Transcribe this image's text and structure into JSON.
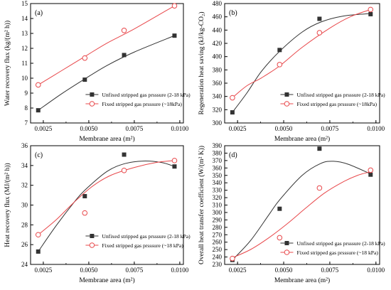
{
  "colors": {
    "black_series": "#333333",
    "red_series": "#e8474a",
    "axes": "#000000"
  },
  "chart_data": [
    {
      "type": "scatter",
      "panel": "(a)",
      "xlabel": "Membrane area (m²)",
      "ylabel": "Water recovery flux (kg/(m² h))",
      "xlim": [
        0.0018,
        0.0102
      ],
      "ylim": [
        7,
        15
      ],
      "xticks": [
        "0.0025",
        "0.0050",
        "0.0075",
        "0.0100"
      ],
      "yticks": [
        "7",
        "8",
        "9",
        "10",
        "11",
        "12",
        "13",
        "14",
        "15"
      ],
      "legend_position": "lower-right",
      "series": [
        {
          "name": "Unfixed stripped gas prsssure (2-18 kPa)",
          "marker": "square",
          "color": "#333333",
          "x": [
            0.00222,
            0.00478,
            0.00694,
            0.00971
          ],
          "y": [
            7.85,
            9.9,
            11.55,
            12.85
          ],
          "fit": [
            [
              0.00222,
              7.85
            ],
            [
              0.0035,
              8.95
            ],
            [
              0.00478,
              9.95
            ],
            [
              0.006,
              10.85
            ],
            [
              0.0075,
              11.75
            ],
            [
              0.00971,
              12.85
            ]
          ]
        },
        {
          "name": "Fixed stripped gas prsssure (~18kPa)",
          "marker": "circle",
          "color": "#e8474a",
          "x": [
            0.00222,
            0.00478,
            0.00694,
            0.00971
          ],
          "y": [
            9.55,
            11.35,
            13.2,
            14.85
          ],
          "fit": [
            [
              0.00222,
              9.55
            ],
            [
              0.0035,
              10.5
            ],
            [
              0.00478,
              11.45
            ],
            [
              0.006,
              12.35
            ],
            [
              0.0075,
              13.3
            ],
            [
              0.00971,
              14.85
            ]
          ]
        }
      ]
    },
    {
      "type": "scatter",
      "panel": "(b)",
      "xlabel": "Membrane area (m²)",
      "ylabel": "Regeneration heat saving (kJ/kg-CO₂)",
      "xlim": [
        0.0018,
        0.0102
      ],
      "ylim": [
        300,
        480
      ],
      "xticks": [
        "0.0025",
        "0.0050",
        "0.0075",
        "0.0100"
      ],
      "yticks": [
        "300",
        "320",
        "340",
        "360",
        "380",
        "400",
        "420",
        "440",
        "460",
        "480"
      ],
      "legend_position": "lower-right",
      "series": [
        {
          "name": "Unfixed stripped gas prsssure (2-18 kPa)",
          "marker": "square",
          "color": "#333333",
          "x": [
            0.00222,
            0.00478,
            0.00694,
            0.00971
          ],
          "y": [
            316,
            410,
            457,
            464
          ],
          "fit": [
            [
              0.00222,
              316
            ],
            [
              0.003,
              345
            ],
            [
              0.0038,
              378
            ],
            [
              0.00478,
              408
            ],
            [
              0.006,
              437
            ],
            [
              0.007,
              452
            ],
            [
              0.0082,
              461
            ],
            [
              0.00971,
              465
            ]
          ]
        },
        {
          "name": "Fixed stripped gas prsssure (~18kPa)",
          "marker": "circle",
          "color": "#e8474a",
          "x": [
            0.00222,
            0.00478,
            0.00694,
            0.00971
          ],
          "y": [
            338,
            388,
            436,
            471
          ],
          "fit": [
            [
              0.00222,
              338
            ],
            [
              0.003,
              356
            ],
            [
              0.0038,
              368
            ],
            [
              0.00478,
              386
            ],
            [
              0.006,
              414
            ],
            [
              0.0075,
              443
            ],
            [
              0.0086,
              460
            ],
            [
              0.00971,
              471
            ]
          ]
        }
      ]
    },
    {
      "type": "scatter",
      "panel": "(c)",
      "xlabel": "Membrane area (m²)",
      "ylabel": "Heat recovery flux (MJ/(m² h))",
      "xlim": [
        0.0018,
        0.0102
      ],
      "ylim": [
        24,
        36
      ],
      "xticks": [
        "0.0025",
        "0.0050",
        "0.0075",
        "0.0100"
      ],
      "yticks": [
        "24",
        "26",
        "28",
        "30",
        "32",
        "34",
        "36"
      ],
      "legend_position": "lower-right",
      "series": [
        {
          "name": "Unfixed stripped gas prsssure (2-18 kPa)",
          "marker": "square",
          "color": "#333333",
          "x": [
            0.00222,
            0.00478,
            0.00694,
            0.00971
          ],
          "y": [
            25.3,
            30.9,
            35.1,
            33.9
          ],
          "fit": [
            [
              0.00222,
              25.3
            ],
            [
              0.0032,
              27.9
            ],
            [
              0.0042,
              30.3
            ],
            [
              0.00478,
              31.5
            ],
            [
              0.006,
              33.4
            ],
            [
              0.007,
              34.2
            ],
            [
              0.008,
              34.45
            ],
            [
              0.009,
              34.3
            ],
            [
              0.00971,
              33.9
            ]
          ]
        },
        {
          "name": "Fixed stripped gas prsssure (~18 kPa)",
          "marker": "circle",
          "color": "#e8474a",
          "x": [
            0.00222,
            0.00478,
            0.00694,
            0.00971
          ],
          "y": [
            27.0,
            29.2,
            33.5,
            34.5
          ],
          "fit": [
            [
              0.00222,
              27.0
            ],
            [
              0.0032,
              28.5
            ],
            [
              0.0042,
              30.3
            ],
            [
              0.0052,
              31.9
            ],
            [
              0.0062,
              33.0
            ],
            [
              0.0075,
              33.8
            ],
            [
              0.0087,
              34.3
            ],
            [
              0.00971,
              34.5
            ]
          ]
        }
      ]
    },
    {
      "type": "scatter",
      "panel": "(d)",
      "xlabel": "Membrane area (m²)",
      "ylabel": "Overall heat transfer coefficient (W/(m² K))",
      "xlim": [
        0.0018,
        0.0102
      ],
      "ylim": [
        230,
        390
      ],
      "xticks": [
        "0.0025",
        "0.0050",
        "0.0075",
        "0.0100"
      ],
      "yticks": [
        "230",
        "240",
        "250",
        "260",
        "270",
        "280",
        "290",
        "300",
        "310",
        "320",
        "330",
        "340",
        "350",
        "360",
        "370",
        "380",
        "390"
      ],
      "legend_position": "lower-right",
      "series": [
        {
          "name": "Unfixed stripped gas prsssure (2-18 kPa)",
          "marker": "square",
          "color": "#333333",
          "x": [
            0.00222,
            0.00478,
            0.00694,
            0.00971
          ],
          "y": [
            236,
            305,
            386,
            351
          ],
          "fit": [
            [
              0.00222,
              236
            ],
            [
              0.0032,
              262
            ],
            [
              0.0042,
              297
            ],
            [
              0.00478,
              317
            ],
            [
              0.006,
              350
            ],
            [
              0.007,
              366
            ],
            [
              0.0077,
              369
            ],
            [
              0.0085,
              365
            ],
            [
              0.00971,
              352
            ]
          ]
        },
        {
          "name": "Fixed stripped gas prsssure (~18 kPa)",
          "marker": "circle",
          "color": "#e8474a",
          "x": [
            0.00222,
            0.00478,
            0.00694,
            0.00971
          ],
          "y": [
            238,
            266,
            333,
            357
          ],
          "fit": [
            [
              0.00222,
              239
            ],
            [
              0.0032,
              250
            ],
            [
              0.0042,
              266
            ],
            [
              0.0052,
              285
            ],
            [
              0.0062,
              306
            ],
            [
              0.0072,
              326
            ],
            [
              0.0082,
              341
            ],
            [
              0.009,
              350
            ],
            [
              0.00971,
              355
            ]
          ]
        }
      ]
    }
  ]
}
